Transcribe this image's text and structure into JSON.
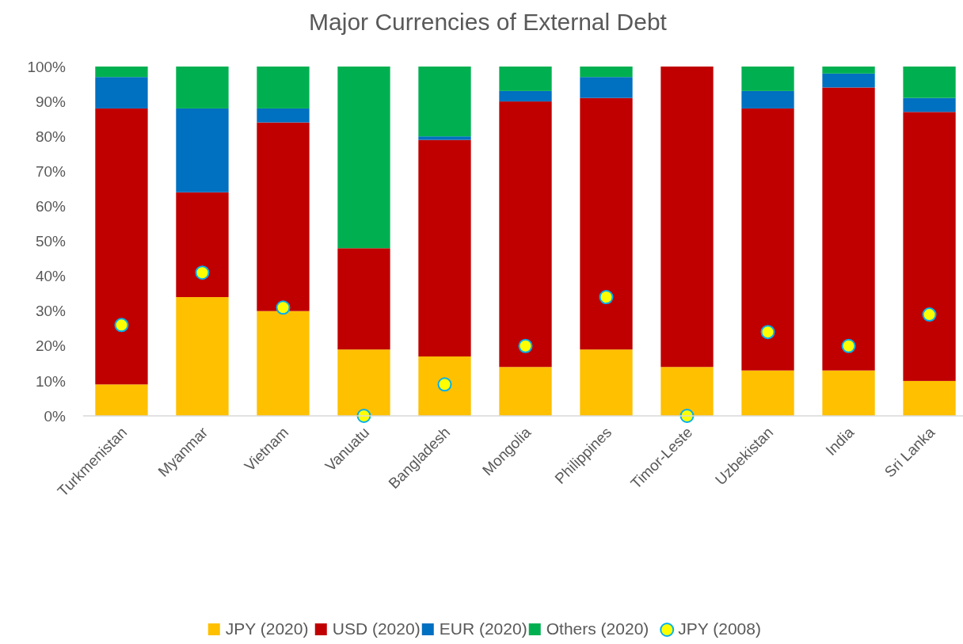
{
  "chart_data": {
    "type": "bar",
    "title": "Major Currencies of External Debt",
    "stacked": true,
    "categories": [
      "Turkmenistan",
      "Myanmar",
      "Vietnam",
      "Vanuatu",
      "Bangladesh",
      "Mongolia",
      "Philippines",
      "Timor-Leste",
      "Uzbekistan",
      "India",
      "Sri Lanka"
    ],
    "series": [
      {
        "name": "JPY (2020)",
        "color": "#ffc000",
        "values": [
          9,
          34,
          30,
          19,
          17,
          14,
          19,
          14,
          13,
          13,
          10
        ]
      },
      {
        "name": "USD (2020)",
        "color": "#c00000",
        "values": [
          79,
          30,
          54,
          29,
          62,
          76,
          72,
          86,
          75,
          81,
          77
        ]
      },
      {
        "name": "EUR (2020)",
        "color": "#0070c0",
        "values": [
          9,
          24,
          4,
          0,
          1,
          3,
          6,
          0,
          5,
          4,
          4
        ]
      },
      {
        "name": "Others (2020)",
        "color": "#00b050",
        "values": [
          3,
          12,
          12,
          52,
          20,
          7,
          3,
          0,
          7,
          2,
          9
        ]
      },
      {
        "name": "JPY (2008)",
        "type": "scatter",
        "color": "#ffff00",
        "marker": "circle",
        "values": [
          26,
          41,
          31,
          0,
          9,
          20,
          34,
          0,
          24,
          20,
          29
        ]
      }
    ],
    "ylim": [
      0,
      100
    ],
    "yticks": [
      {
        "value": 0,
        "label": "0%"
      },
      {
        "value": 10,
        "label": "10%"
      },
      {
        "value": 20,
        "label": "20%"
      },
      {
        "value": 30,
        "label": "30%"
      },
      {
        "value": 40,
        "label": "40%"
      },
      {
        "value": 50,
        "label": "50%"
      },
      {
        "value": 60,
        "label": "60%"
      },
      {
        "value": 70,
        "label": "70%"
      },
      {
        "value": 80,
        "label": "80%"
      },
      {
        "value": 90,
        "label": "90%"
      },
      {
        "value": 100,
        "label": "100%"
      }
    ],
    "grid": false,
    "legend": "bottom"
  }
}
